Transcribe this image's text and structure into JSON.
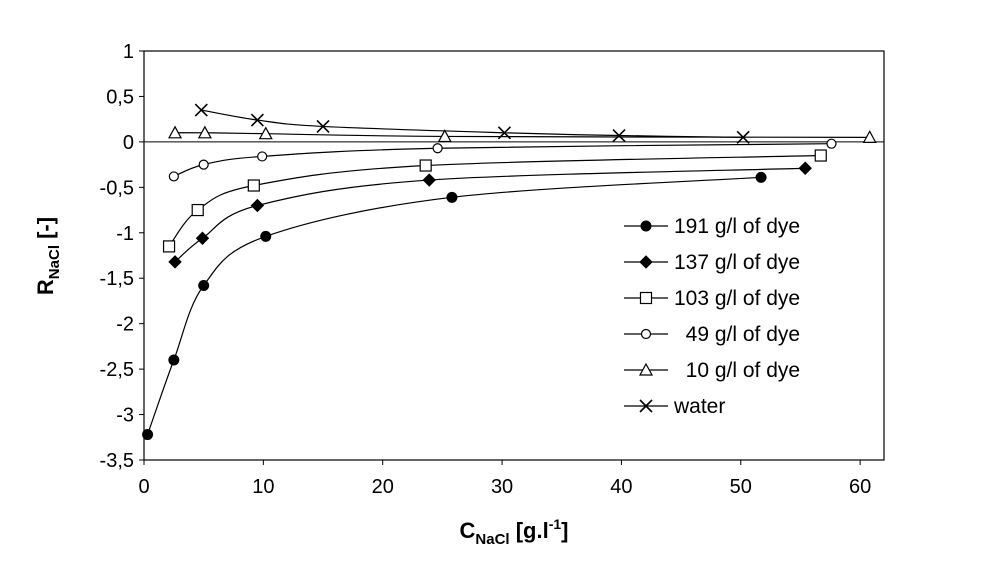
{
  "chart_data": {
    "type": "scatter",
    "xlabel": {
      "main": "C",
      "sub": "NaCl",
      "rest": " [g.l",
      "sup": "-1",
      "end": "]"
    },
    "ylabel": {
      "main": "R",
      "sub": "NaCl",
      "rest": " [-]"
    },
    "xlim": [
      0,
      62
    ],
    "ylim": [
      -3.5,
      1
    ],
    "xticks": [
      0,
      10,
      20,
      30,
      40,
      50,
      60
    ],
    "xtick_labels": [
      "0",
      "10",
      "20",
      "30",
      "40",
      "50",
      "60"
    ],
    "yticks": [
      1,
      0.5,
      0,
      -0.5,
      -1,
      -1.5,
      -2,
      -2.5,
      -3,
      -3.5
    ],
    "ytick_labels": [
      "1",
      "0,5",
      "0",
      "-0,5",
      "-1",
      "-1,5",
      "-2",
      "-2,5",
      "-3",
      "-3,5"
    ],
    "grid": false,
    "zero_line": true,
    "legend_position": "right",
    "series": [
      {
        "name": "191 g/l of dye",
        "marker": "filled-circle",
        "x": [
          0.3,
          2.5,
          5.0,
          10.2,
          25.8,
          51.7
        ],
        "y": [
          -3.22,
          -2.4,
          -1.58,
          -1.04,
          -0.61,
          -0.39
        ]
      },
      {
        "name": "137 g/l of dye",
        "marker": "filled-diamond",
        "x": [
          2.6,
          4.9,
          9.5,
          23.9,
          55.4
        ],
        "y": [
          -1.32,
          -1.06,
          -0.7,
          -0.42,
          -0.29
        ]
      },
      {
        "name": "103 g/l of dye",
        "marker": "open-square",
        "x": [
          2.1,
          4.5,
          9.2,
          23.6,
          56.7
        ],
        "y": [
          -1.15,
          -0.75,
          -0.48,
          -0.26,
          -0.15
        ]
      },
      {
        "name": "  49 g/l of dye",
        "marker": "open-circle",
        "x": [
          2.5,
          5.0,
          9.9,
          24.6,
          57.6
        ],
        "y": [
          -0.38,
          -0.25,
          -0.16,
          -0.07,
          -0.02
        ]
      },
      {
        "name": "  10 g/l of dye",
        "marker": "open-triangle",
        "x": [
          2.6,
          5.1,
          10.2,
          25.2,
          60.8
        ],
        "y": [
          0.1,
          0.1,
          0.09,
          0.06,
          0.05
        ]
      },
      {
        "name": "water",
        "marker": "x-cross",
        "x": [
          4.8,
          9.5,
          15.0,
          30.2,
          39.8,
          50.2
        ],
        "y": [
          0.35,
          0.24,
          0.17,
          0.1,
          0.07,
          0.05
        ]
      }
    ]
  }
}
